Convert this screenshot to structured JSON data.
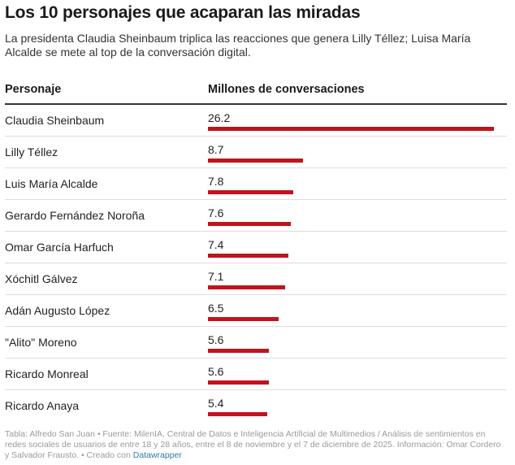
{
  "title": "Los 10 personajes que acaparan las miradas",
  "subtitle": "La presidenta Claudia Sheinbaum triplica las reacciones que genera Lilly Téllez; Luisa María Alcalde se mete al top de la conversación digital.",
  "columns": {
    "name": "Personaje",
    "value": "Millones de conversaciones"
  },
  "chart_data": {
    "type": "bar",
    "title": "Los 10 personajes que acaparan las miradas",
    "ylabel": "Millones de conversaciones",
    "categories": [
      "Claudia Sheinbaum",
      "Lilly Téllez",
      "Luis María Alcalde",
      "Gerardo Fernández Noroña",
      "Omar García Harfuch",
      "Xóchitl Gálvez",
      "Adán Augusto López",
      "\"Alito\" Moreno",
      "Ricardo Monreal",
      "Ricardo Anaya"
    ],
    "values": [
      26.2,
      8.7,
      7.8,
      7.6,
      7.4,
      7.1,
      6.5,
      5.6,
      5.6,
      5.4
    ],
    "value_labels": [
      "26.2",
      "8.7",
      "7.8",
      "7.6",
      "7.4",
      "7.1",
      "6.5",
      "5.6",
      "5.6",
      "5.4"
    ],
    "xlim": [
      0,
      26.2
    ],
    "bar_color": "#c0141c"
  },
  "footer": {
    "text": "Tabla: Alfredo San Juan • Fuente: MilenIA, Central de Datos e Inteligencia Artificial de Multimedios / Análisis de sentimientos en redes sociales de usuarios de entre 18 y 28 años, entre el 8 de noviembre y el 7 de diciembre de 2025. Información: Omar Cordero y Salvador Frausto. • Creado con",
    "link": "Datawrapper"
  }
}
